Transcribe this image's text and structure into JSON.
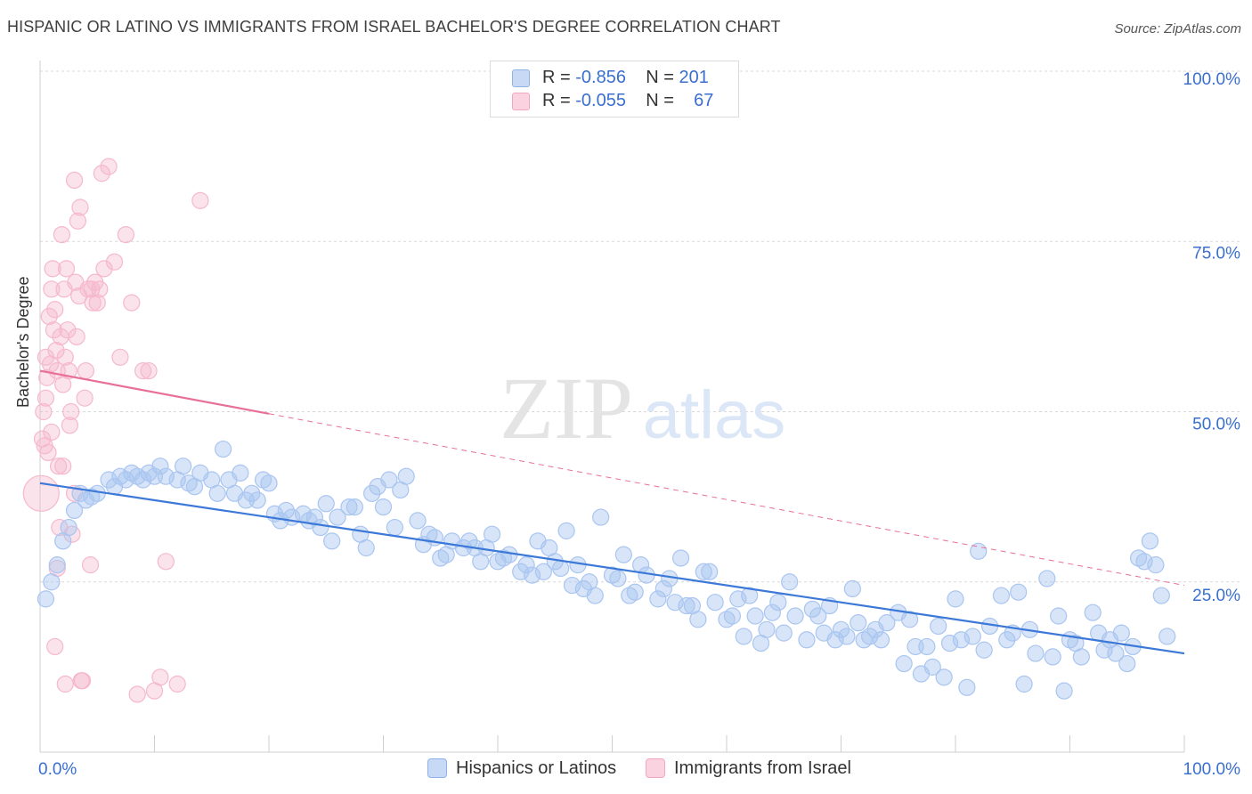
{
  "title": "HISPANIC OR LATINO VS IMMIGRANTS FROM ISRAEL BACHELOR'S DEGREE CORRELATION CHART",
  "source": "Source: ZipAtlas.com",
  "watermark": {
    "zip": "ZIP",
    "atlas": "atlas"
  },
  "legend": {
    "rows": [
      {
        "r_label": "R = ",
        "r_value": "-0.856",
        "n_label": "N = ",
        "n_value": "201",
        "color": "#8fb2e8"
      },
      {
        "r_label": "R = ",
        "r_value": "-0.055",
        "n_label": "N = ",
        "n_value": "67",
        "color": "#f3a6c0"
      }
    ]
  },
  "bottom_legend": [
    {
      "label": "Hispanics or Latinos",
      "color": "#8fb2e8"
    },
    {
      "label": "Immigrants from Israel",
      "color": "#f3a6c0"
    }
  ],
  "chart_data": {
    "type": "scatter",
    "ylabel": "Bachelor's Degree",
    "xlim": [
      0,
      100
    ],
    "ylim": [
      0,
      100
    ],
    "x_tick_labels": [
      "0.0%",
      "100.0%"
    ],
    "y_tick_labels": [
      "100.0%",
      "75.0%",
      "50.0%",
      "25.0%"
    ],
    "y_ticks": [
      100,
      75,
      50,
      25
    ],
    "grid": true,
    "series": [
      {
        "name": "Hispanics or Latinos",
        "color": "#3b78d8",
        "fill": "#a9c5f0",
        "trend": {
          "x0": 0,
          "y0": 39.5,
          "x1": 100,
          "y1": 14.5,
          "dashed_after": 100
        },
        "points": [
          [
            0.5,
            22.5
          ],
          [
            1,
            25
          ],
          [
            1.5,
            27.5
          ],
          [
            2,
            31
          ],
          [
            2.5,
            33
          ],
          [
            3,
            35.5
          ],
          [
            3.5,
            38
          ],
          [
            4,
            37
          ],
          [
            4.5,
            37.5
          ],
          [
            5,
            38
          ],
          [
            6,
            40
          ],
          [
            6.5,
            39
          ],
          [
            7,
            40.5
          ],
          [
            7.5,
            40
          ],
          [
            8,
            41
          ],
          [
            8.5,
            40.5
          ],
          [
            9,
            40
          ],
          [
            9.5,
            41
          ],
          [
            10,
            40.5
          ],
          [
            10.5,
            42
          ],
          [
            11,
            40.5
          ],
          [
            12,
            40
          ],
          [
            12.5,
            42
          ],
          [
            13,
            39.5
          ],
          [
            13.5,
            39
          ],
          [
            14,
            41
          ],
          [
            15,
            40
          ],
          [
            15.5,
            38
          ],
          [
            16,
            44.5
          ],
          [
            16.5,
            40
          ],
          [
            17,
            38
          ],
          [
            17.5,
            41
          ],
          [
            18,
            37
          ],
          [
            18.5,
            38
          ],
          [
            19,
            37
          ],
          [
            19.5,
            40
          ],
          [
            20,
            39.5
          ],
          [
            20.5,
            35
          ],
          [
            21,
            34
          ],
          [
            21.5,
            35.5
          ],
          [
            22,
            34.5
          ],
          [
            23,
            35
          ],
          [
            23.5,
            34
          ],
          [
            24,
            34.5
          ],
          [
            24.5,
            33
          ],
          [
            25,
            36.5
          ],
          [
            25.5,
            31
          ],
          [
            26,
            34.5
          ],
          [
            27,
            36
          ],
          [
            27.5,
            36
          ],
          [
            28,
            32
          ],
          [
            28.5,
            30
          ],
          [
            29,
            38
          ],
          [
            29.5,
            39
          ],
          [
            30,
            36
          ],
          [
            30.5,
            40
          ],
          [
            31,
            33
          ],
          [
            31.5,
            38.5
          ],
          [
            32,
            40.5
          ],
          [
            33,
            34
          ],
          [
            33.5,
            30.5
          ],
          [
            34,
            32
          ],
          [
            34.5,
            31.5
          ],
          [
            35,
            28.5
          ],
          [
            35.5,
            29
          ],
          [
            36,
            31
          ],
          [
            37,
            30
          ],
          [
            37.5,
            31
          ],
          [
            38,
            30
          ],
          [
            38.5,
            28
          ],
          [
            39,
            30
          ],
          [
            39.5,
            32
          ],
          [
            40,
            28
          ],
          [
            40.5,
            28.5
          ],
          [
            41,
            29
          ],
          [
            42,
            26.5
          ],
          [
            42.5,
            27.5
          ],
          [
            43,
            26
          ],
          [
            43.5,
            31
          ],
          [
            44,
            26.5
          ],
          [
            44.5,
            30
          ],
          [
            45,
            28
          ],
          [
            45.5,
            27
          ],
          [
            46,
            32.5
          ],
          [
            46.5,
            24.5
          ],
          [
            47,
            27.5
          ],
          [
            47.5,
            24
          ],
          [
            48,
            25
          ],
          [
            48.5,
            23
          ],
          [
            49,
            34.5
          ],
          [
            50,
            26
          ],
          [
            50.5,
            25.5
          ],
          [
            51,
            29
          ],
          [
            51.5,
            23
          ],
          [
            52,
            23.5
          ],
          [
            52.5,
            27.5
          ],
          [
            53,
            26
          ],
          [
            54,
            22.5
          ],
          [
            54.5,
            24
          ],
          [
            55,
            25.5
          ],
          [
            55.5,
            22
          ],
          [
            56,
            28.5
          ],
          [
            56.5,
            21.5
          ],
          [
            57,
            21.5
          ],
          [
            57.5,
            19.5
          ],
          [
            58,
            26.5
          ],
          [
            58.5,
            26.5
          ],
          [
            59,
            22
          ],
          [
            60,
            19.5
          ],
          [
            60.5,
            20
          ],
          [
            61,
            22.5
          ],
          [
            61.5,
            17
          ],
          [
            62,
            23
          ],
          [
            62.5,
            20
          ],
          [
            63,
            16
          ],
          [
            63.5,
            18
          ],
          [
            64,
            20.5
          ],
          [
            64.5,
            22
          ],
          [
            65,
            17.5
          ],
          [
            65.5,
            25
          ],
          [
            66,
            20
          ],
          [
            67,
            16.5
          ],
          [
            67.5,
            21
          ],
          [
            68,
            20
          ],
          [
            68.5,
            17.5
          ],
          [
            69,
            21.5
          ],
          [
            69.5,
            16.5
          ],
          [
            70,
            18
          ],
          [
            70.5,
            17
          ],
          [
            71,
            24
          ],
          [
            71.5,
            19
          ],
          [
            72,
            16.5
          ],
          [
            72.5,
            17
          ],
          [
            73,
            18
          ],
          [
            73.5,
            16.5
          ],
          [
            74,
            19
          ],
          [
            75,
            20.5
          ],
          [
            75.5,
            13
          ],
          [
            76,
            19.5
          ],
          [
            76.5,
            15.5
          ],
          [
            77,
            11.5
          ],
          [
            77.5,
            15.5
          ],
          [
            78,
            12.5
          ],
          [
            78.5,
            18.5
          ],
          [
            79,
            11
          ],
          [
            79.5,
            16
          ],
          [
            80,
            22.5
          ],
          [
            80.5,
            16.5
          ],
          [
            81,
            9.5
          ],
          [
            81.5,
            17
          ],
          [
            82,
            29.5
          ],
          [
            82.5,
            15
          ],
          [
            83,
            18.5
          ],
          [
            84,
            23
          ],
          [
            84.5,
            16.5
          ],
          [
            85,
            17.5
          ],
          [
            85.5,
            23.5
          ],
          [
            86,
            10
          ],
          [
            86.5,
            18
          ],
          [
            87,
            14.5
          ],
          [
            88,
            25.5
          ],
          [
            88.5,
            14
          ],
          [
            89,
            20
          ],
          [
            89.5,
            9
          ],
          [
            90,
            16.5
          ],
          [
            90.5,
            16
          ],
          [
            91,
            14
          ],
          [
            92,
            20.5
          ],
          [
            92.5,
            17.5
          ],
          [
            93,
            15
          ],
          [
            93.5,
            16.5
          ],
          [
            94,
            14.5
          ],
          [
            94.5,
            17.5
          ],
          [
            95,
            13
          ],
          [
            95.5,
            15.5
          ],
          [
            96,
            28.5
          ],
          [
            96.5,
            28
          ],
          [
            97,
            31
          ],
          [
            97.5,
            27.5
          ],
          [
            98,
            23
          ],
          [
            98.5,
            17
          ]
        ]
      },
      {
        "name": "Immigrants from Israel",
        "color": "#e86f9a",
        "fill": "#f6b8cc",
        "trend": {
          "x0": 0,
          "y0": 56,
          "x1": 100,
          "y1": 24.5,
          "solid_until": 20
        },
        "points": [
          [
            0.1,
            38
          ],
          [
            0.2,
            46
          ],
          [
            0.3,
            50
          ],
          [
            0.4,
            45
          ],
          [
            0.5,
            52
          ],
          [
            0.5,
            58
          ],
          [
            0.6,
            55
          ],
          [
            0.8,
            64
          ],
          [
            0.9,
            57
          ],
          [
            1,
            47
          ],
          [
            1,
            68
          ],
          [
            1.1,
            71
          ],
          [
            1.2,
            62
          ],
          [
            1.3,
            65
          ],
          [
            1.4,
            59
          ],
          [
            1.5,
            56
          ],
          [
            1.5,
            27
          ],
          [
            1.6,
            42
          ],
          [
            1.7,
            33
          ],
          [
            1.8,
            61
          ],
          [
            1.9,
            76
          ],
          [
            2,
            54
          ],
          [
            2,
            42
          ],
          [
            2.1,
            68
          ],
          [
            2.2,
            58
          ],
          [
            2.3,
            71
          ],
          [
            2.4,
            62
          ],
          [
            2.5,
            56
          ],
          [
            2.6,
            48
          ],
          [
            2.7,
            50
          ],
          [
            2.8,
            32
          ],
          [
            3,
            84
          ],
          [
            3.1,
            69
          ],
          [
            3.2,
            61
          ],
          [
            3.3,
            78
          ],
          [
            3.4,
            67
          ],
          [
            3.5,
            80
          ],
          [
            3.6,
            10.5
          ],
          [
            3.7,
            10.5
          ],
          [
            3.9,
            52
          ],
          [
            4,
            56
          ],
          [
            4.2,
            68
          ],
          [
            4.4,
            27.5
          ],
          [
            4.5,
            68
          ],
          [
            4.6,
            66
          ],
          [
            4.8,
            69
          ],
          [
            5,
            66
          ],
          [
            5.2,
            68
          ],
          [
            5.4,
            85
          ],
          [
            5.6,
            71
          ],
          [
            6,
            86
          ],
          [
            6.5,
            72
          ],
          [
            7,
            58
          ],
          [
            7.5,
            76
          ],
          [
            8,
            66
          ],
          [
            8.5,
            8.5
          ],
          [
            9,
            56
          ],
          [
            9.5,
            56
          ],
          [
            10,
            9
          ],
          [
            10.5,
            11
          ],
          [
            11,
            28
          ],
          [
            12,
            10
          ],
          [
            14,
            81
          ],
          [
            1.3,
            15.5
          ],
          [
            2.2,
            10
          ],
          [
            3,
            38
          ],
          [
            0.7,
            44
          ]
        ]
      }
    ]
  }
}
